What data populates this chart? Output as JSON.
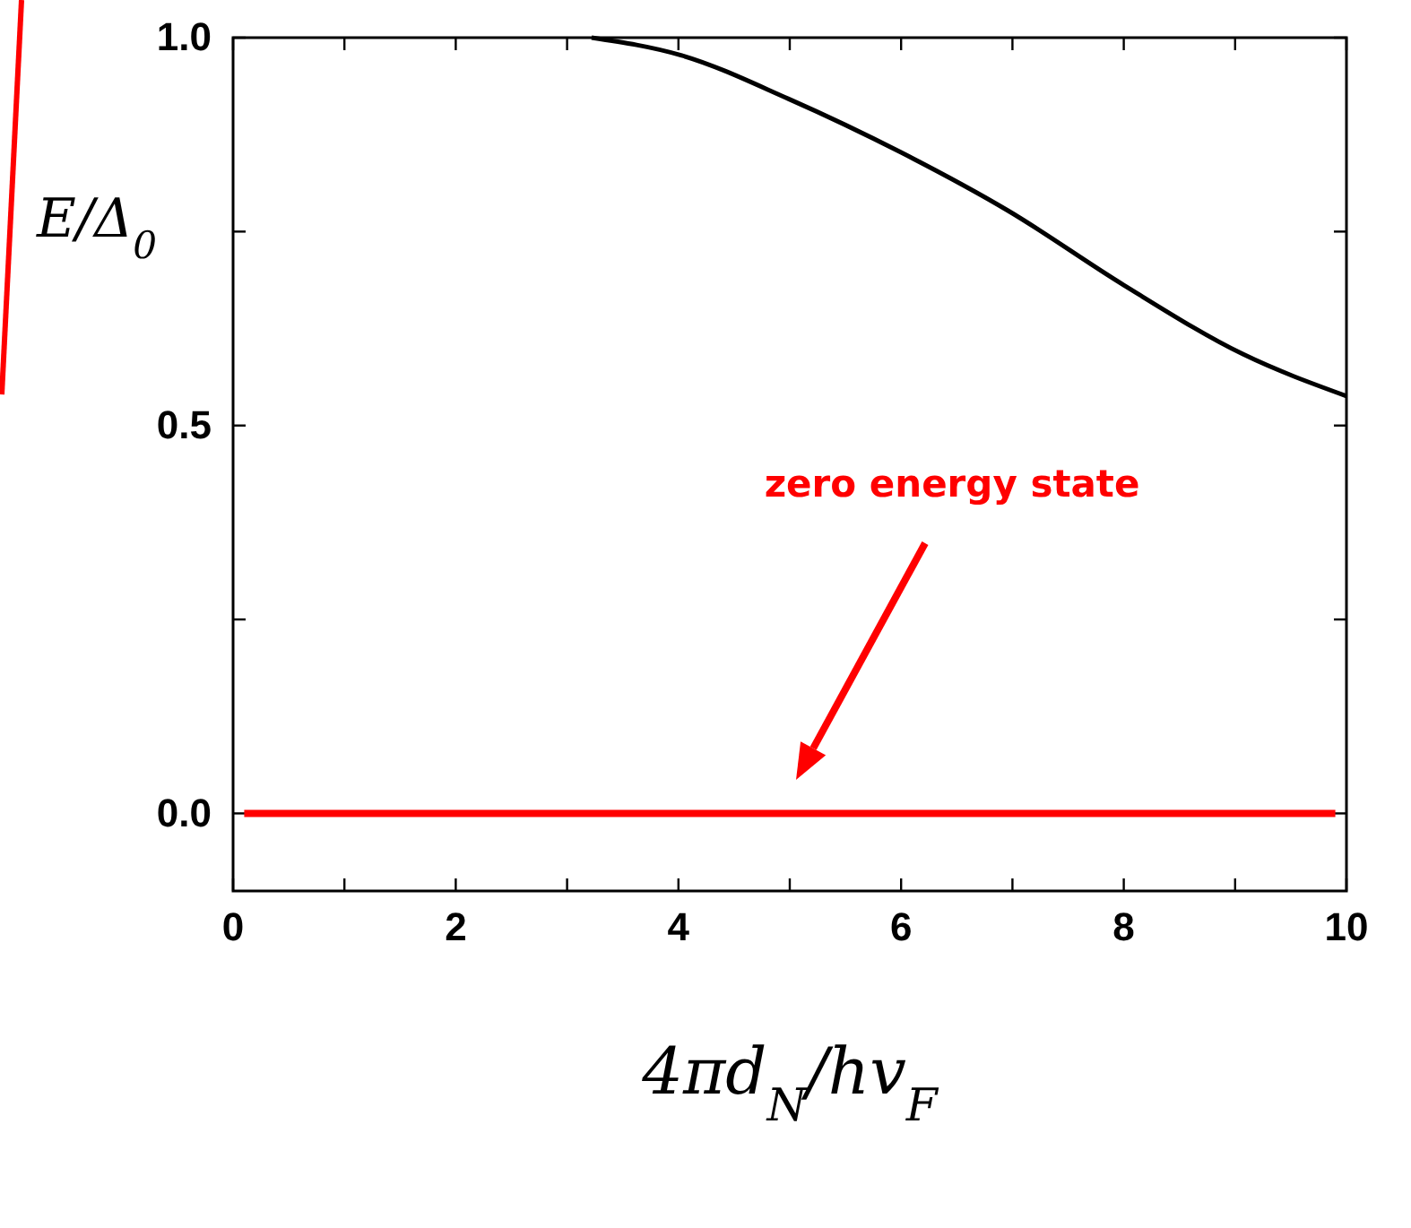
{
  "chart_data": {
    "type": "line",
    "xlabel": "4πd$_{N}$/hv$_{F}$",
    "ylabel": "E/Δ$_{0}$",
    "xlim": [
      0,
      10
    ],
    "ylim": [
      -0.1,
      1.0
    ],
    "xticks": [
      0,
      {
        "value": 1,
        "label": null
      },
      2,
      {
        "value": 3,
        "label": null
      },
      4,
      {
        "value": 5,
        "label": null
      },
      6,
      {
        "value": 7,
        "label": null
      },
      8,
      {
        "value": 9,
        "label": null
      },
      10
    ],
    "yticks": [
      {
        "value": 0,
        "label": "0.0"
      },
      {
        "value": 0.25,
        "label": null
      },
      0.5,
      {
        "value": 0.75,
        "label": null
      },
      {
        "value": 1,
        "label": "1.0"
      }
    ],
    "grid": false,
    "marker": "none",
    "line_style": "solid",
    "series": [
      {
        "color": "#000000",
        "x": [
          3.22,
          4.03,
          4.99,
          6.0,
          6.96,
          8.0,
          9.07,
          10
        ],
        "values": [
          1.0,
          0.977,
          0.921,
          0.852,
          0.777,
          0.681,
          0.592,
          0.538
        ]
      },
      {
        "color": "#ff0000",
        "x": [
          0.1,
          9.9
        ],
        "values": [
          0,
          0
        ]
      }
    ],
    "annotations": [
      "zero energy state"
    ]
  }
}
